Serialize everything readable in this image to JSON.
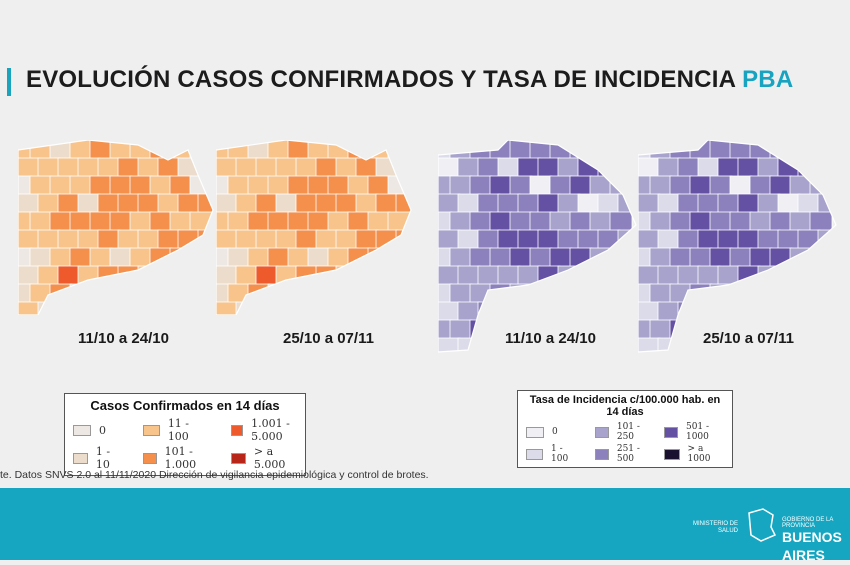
{
  "title": {
    "main": "EVOLUCIÓN CASOS CONFIRMADOS Y TASA DE INCIDENCIA ",
    "highlight": "PBA"
  },
  "maps": [
    {
      "label": "11/10 a 24/10",
      "scale": "cases"
    },
    {
      "label": "25/10 a 07/11",
      "scale": "cases"
    },
    {
      "label": "11/10 a 24/10",
      "scale": "rate"
    },
    {
      "label": "25/10 a 07/11",
      "scale": "rate"
    }
  ],
  "legend_cases": {
    "title": "Casos Confirmados en 14 días",
    "items": [
      {
        "label": "0",
        "color": "#ede8e3"
      },
      {
        "label": "11 - 100",
        "color": "#f8c48c"
      },
      {
        "label": "1.001 - 5.000",
        "color": "#ee5a2c"
      },
      {
        "label": "1 - 10",
        "color": "#ecdccc"
      },
      {
        "label": "101 - 1.000",
        "color": "#f4904c"
      },
      {
        "label": "> a 5.000",
        "color": "#b8261a"
      }
    ]
  },
  "legend_rate": {
    "title": "Tasa de Incidencia c/100.000 hab. en 14 días",
    "items": [
      {
        "label": "0",
        "color": "#f0eff4"
      },
      {
        "label": "101 - 250",
        "color": "#a7a3cc"
      },
      {
        "label": "501 - 1000",
        "color": "#6451a4"
      },
      {
        "label": "1 - 100",
        "color": "#dcdbe9"
      },
      {
        "label": "251 - 500",
        "color": "#8c80bd"
      },
      {
        "label": "> a 1000",
        "color": "#1a1030"
      }
    ]
  },
  "source": "te. Datos SNVS 2.0 al 11/11/2020 Dirección de vigilancia epidemiológica y control de brotes.",
  "footer": {
    "ministerio": "MINISTERIO DE SALUD",
    "gobierno": "GOBIERNO DE LA PROVINCIA",
    "buenos_aires": "BUENOS AIRES"
  },
  "colors": {
    "accent": "#18a4c0",
    "footer": "#17a6c1"
  }
}
